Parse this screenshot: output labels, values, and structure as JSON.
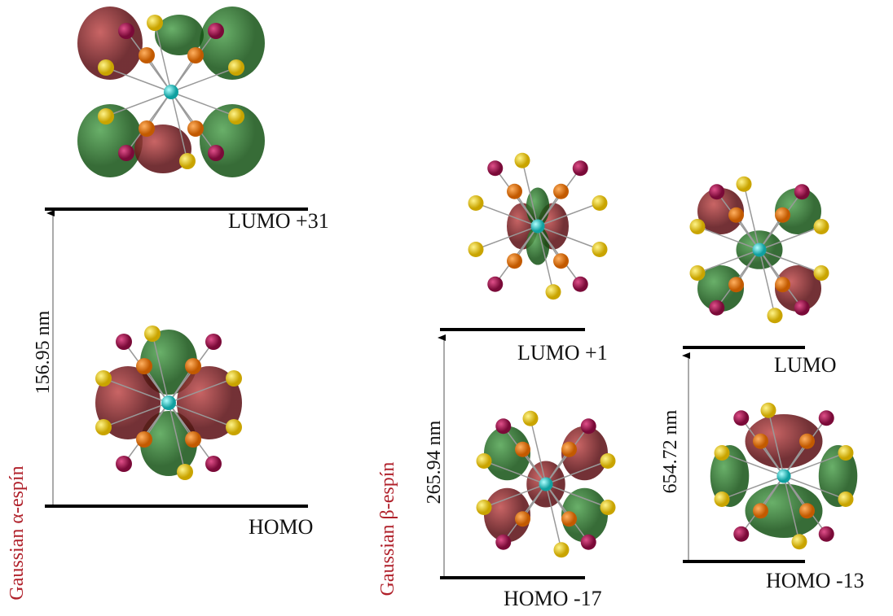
{
  "panels": [
    {
      "label": "Gaussian α-espín",
      "transitions": [
        {
          "wavelength": "156.95 nm",
          "upper": "LUMO +31",
          "lower": "HOMO"
        }
      ]
    },
    {
      "label": "Gaussian β-espín",
      "transitions": [
        {
          "wavelength": "265.94 nm",
          "upper": "LUMO +1",
          "lower": "HOMO -17"
        },
        {
          "wavelength": "654.72 nm",
          "upper": "LUMO",
          "lower": "HOMO -13"
        }
      ]
    }
  ]
}
